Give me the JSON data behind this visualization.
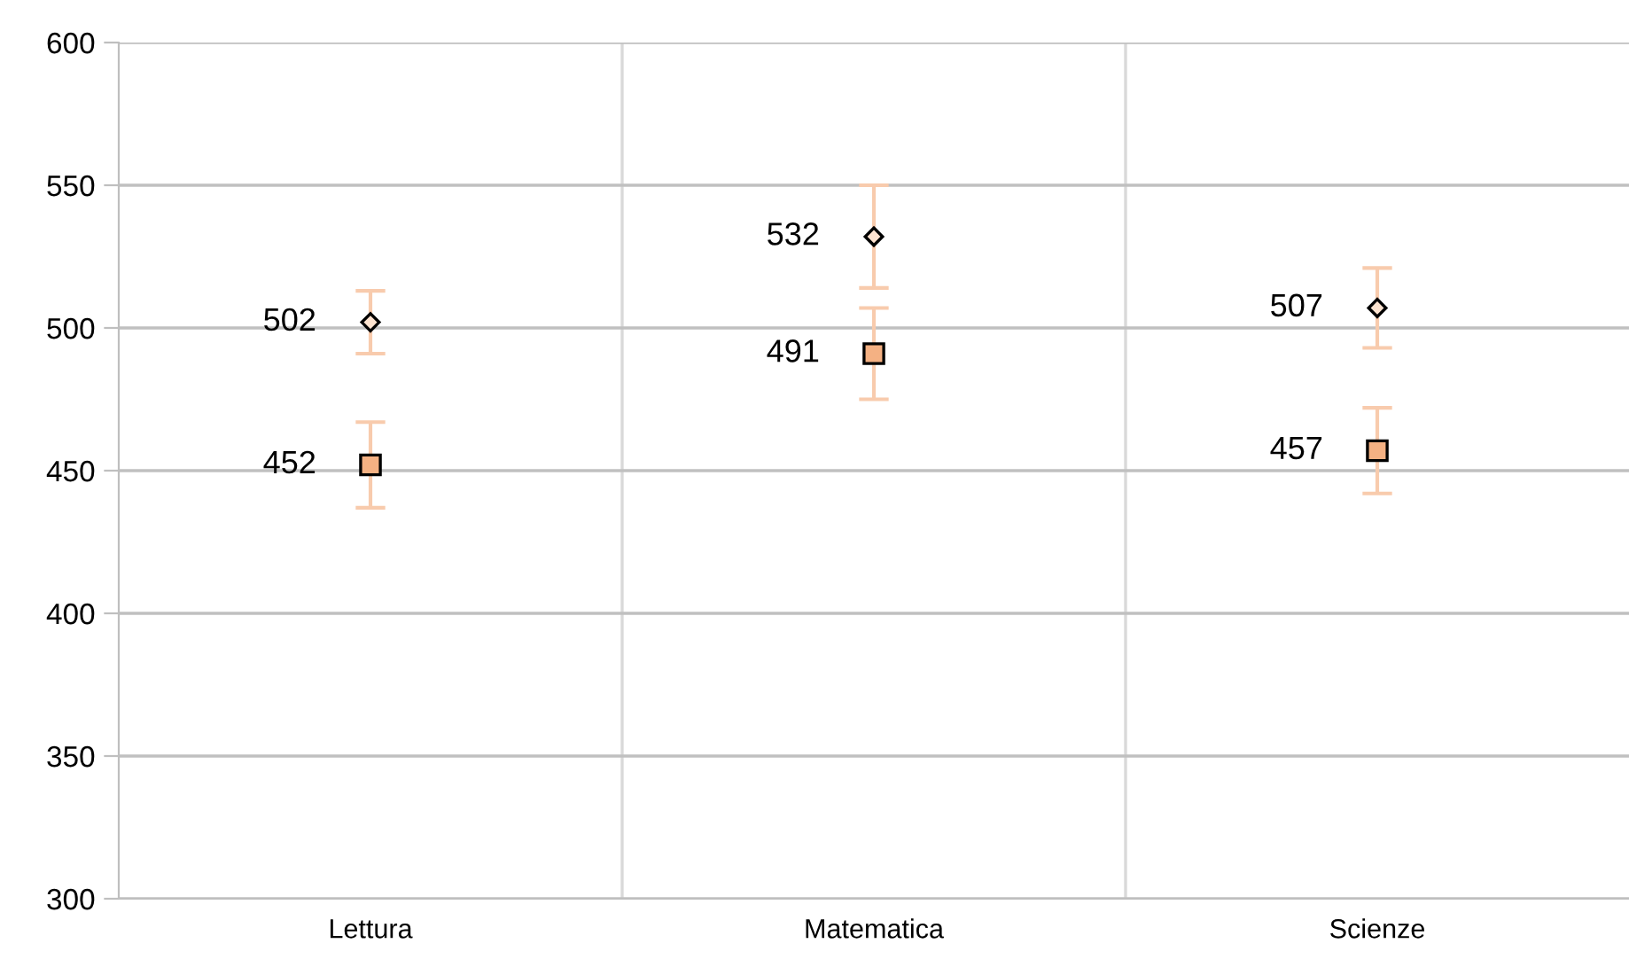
{
  "chart_data": {
    "type": "scatter",
    "categories": [
      "Lettura",
      "Matematica",
      "Scienze"
    ],
    "series": [
      {
        "color": "#fde3d0",
        "marker": "diamond",
        "values": [
          502,
          532,
          507
        ],
        "errors": [
          11,
          18,
          14
        ]
      },
      {
        "color": "#f4b183",
        "marker": "square",
        "values": [
          452,
          491,
          457
        ],
        "errors": [
          15,
          16,
          15
        ]
      }
    ],
    "ylim": [
      300,
      600
    ],
    "yticks": [
      300,
      350,
      400,
      450,
      500,
      550,
      600
    ],
    "grid": true,
    "data_labels": true
  }
}
